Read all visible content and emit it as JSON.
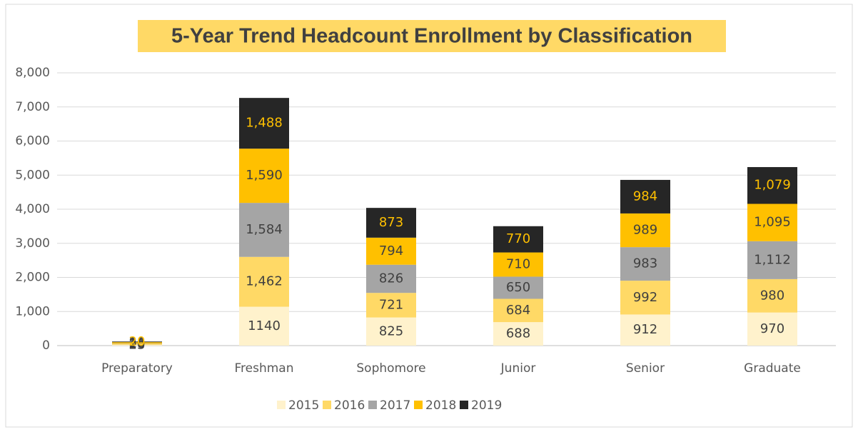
{
  "chart_data": {
    "type": "bar",
    "stacked": true,
    "title": "5-Year Trend Headcount Enrollment by Classification",
    "categories": [
      "Preparatory",
      "Freshman",
      "Sophomore",
      "Junior",
      "Senior",
      "Graduate"
    ],
    "series": [
      {
        "name": "2015",
        "color": "#fff2cc",
        "label_color": "#404040",
        "values": [
          23,
          1140,
          825,
          688,
          912,
          970
        ],
        "value_labels": [
          "23",
          "1140",
          "825",
          "688",
          "912",
          "970"
        ]
      },
      {
        "name": "2016",
        "color": "#ffd966",
        "label_color": "#404040",
        "values": [
          28,
          1462,
          721,
          684,
          992,
          980
        ],
        "value_labels": [
          "28",
          "1,462",
          "721",
          "684",
          "992",
          "980"
        ]
      },
      {
        "name": "2017",
        "color": "#a5a5a5",
        "label_color": "#404040",
        "values": [
          10,
          1584,
          826,
          650,
          983,
          1112
        ],
        "value_labels": [
          "10",
          "1,584",
          "826",
          "650",
          "983",
          "1,112"
        ]
      },
      {
        "name": "2018",
        "color": "#ffc000",
        "label_color": "#404040",
        "values": [
          38,
          1590,
          794,
          710,
          989,
          1095
        ],
        "value_labels": [
          "38",
          "1,590",
          "794",
          "710",
          "989",
          "1,095"
        ]
      },
      {
        "name": "2019",
        "color": "#262626",
        "label_color": "#ffc000",
        "values": [
          20,
          1488,
          873,
          770,
          984,
          1079
        ],
        "value_labels": [
          "20",
          "1,488",
          "873",
          "770",
          "984",
          "1,079"
        ]
      }
    ],
    "ylim": [
      0,
      8000
    ],
    "yticks": [
      0,
      {
        "value": 1000,
        "label": "1,000"
      },
      {
        "value": 2000,
        "label": "2,000"
      },
      {
        "value": 3000,
        "label": "3,000"
      },
      {
        "value": 4000,
        "label": "4,000"
      },
      {
        "value": 5000,
        "label": "5,000"
      },
      {
        "value": 6000,
        "label": "6,000"
      },
      {
        "value": 7000,
        "label": "7,000"
      },
      {
        "value": 8000,
        "label": "8,000"
      }
    ],
    "grid": true,
    "legend": "bottom"
  }
}
